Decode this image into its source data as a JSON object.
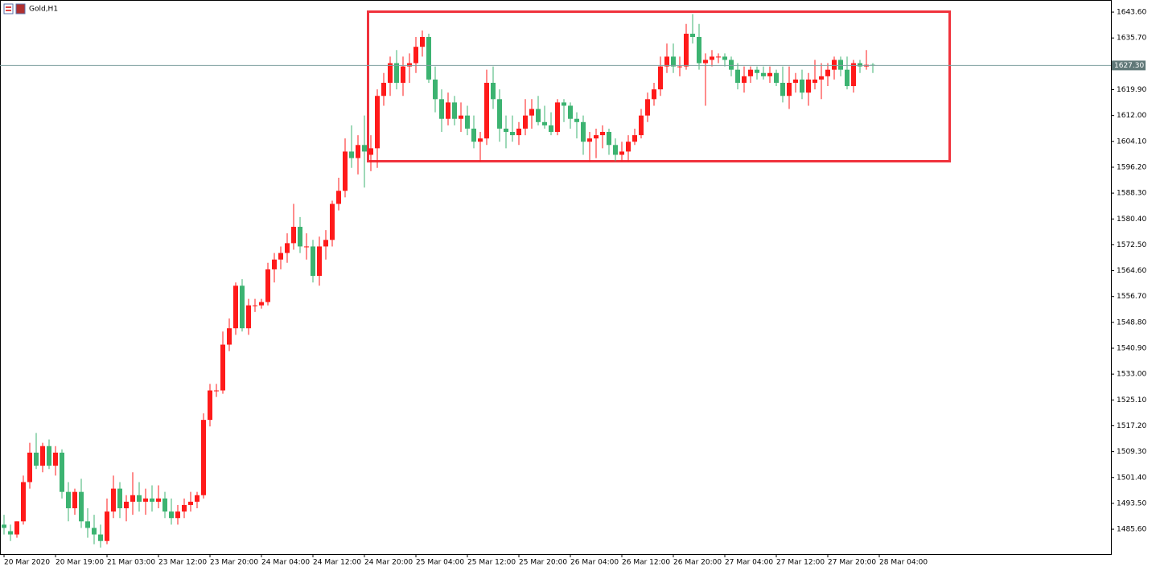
{
  "chart_data": {
    "type": "candlestick",
    "title": "Gold,H1",
    "up_color": "#ff1a1a",
    "down_color": "#3cb371",
    "current_price": {
      "value": 1627.3,
      "label": "1627.30"
    },
    "ylim": [
      1478.0,
      1647.3
    ],
    "yticks": [
      {
        "value": 1643.6,
        "label": "1643.60"
      },
      {
        "value": 1635.7,
        "label": "1635.70"
      },
      {
        "value": 1619.9,
        "label": "1619.90"
      },
      {
        "value": 1612.0,
        "label": "1612.00"
      },
      {
        "value": 1604.1,
        "label": "1604.10"
      },
      {
        "value": 1596.2,
        "label": "1596.20"
      },
      {
        "value": 1588.3,
        "label": "1588.30"
      },
      {
        "value": 1580.4,
        "label": "1580.40"
      },
      {
        "value": 1572.5,
        "label": "1572.50"
      },
      {
        "value": 1564.6,
        "label": "1564.60"
      },
      {
        "value": 1556.7,
        "label": "1556.70"
      },
      {
        "value": 1548.8,
        "label": "1548.80"
      },
      {
        "value": 1540.9,
        "label": "1540.90"
      },
      {
        "value": 1533.0,
        "label": "1533.00"
      },
      {
        "value": 1525.1,
        "label": "1525.10"
      },
      {
        "value": 1517.2,
        "label": "1517.20"
      },
      {
        "value": 1509.3,
        "label": "1509.30"
      },
      {
        "value": 1501.4,
        "label": "1501.40"
      },
      {
        "value": 1493.5,
        "label": "1493.50"
      },
      {
        "value": 1485.6,
        "label": "1485.60"
      }
    ],
    "xticks": [
      {
        "value": 0,
        "label": "20 Mar 2020"
      },
      {
        "value": 8,
        "label": "20 Mar 19:00"
      },
      {
        "value": 16,
        "label": "21 Mar 03:00"
      },
      {
        "value": 24,
        "label": "23 Mar 12:00"
      },
      {
        "value": 32,
        "label": "23 Mar 20:00"
      },
      {
        "value": 40,
        "label": "24 Mar 04:00"
      },
      {
        "value": 48,
        "label": "24 Mar 12:00"
      },
      {
        "value": 56,
        "label": "24 Mar 20:00"
      },
      {
        "value": 64,
        "label": "25 Mar 04:00"
      },
      {
        "value": 72,
        "label": "25 Mar 12:00"
      },
      {
        "value": 80,
        "label": "25 Mar 20:00"
      },
      {
        "value": 88,
        "label": "26 Mar 04:00"
      },
      {
        "value": 96,
        "label": "26 Mar 12:00"
      },
      {
        "value": 104,
        "label": "26 Mar 20:00"
      },
      {
        "value": 112,
        "label": "27 Mar 04:00"
      },
      {
        "value": 120,
        "label": "27 Mar 12:00"
      },
      {
        "value": 128,
        "label": "27 Mar 20:00"
      },
      {
        "value": 136,
        "label": "28 Mar 04:00"
      }
    ],
    "candles": [
      [
        1487,
        1490,
        1484,
        1486
      ],
      [
        1485,
        1487,
        1482,
        1484
      ],
      [
        1484,
        1488,
        1483,
        1488
      ],
      [
        1488,
        1502,
        1487,
        1500
      ],
      [
        1500,
        1512,
        1498,
        1509
      ],
      [
        1509,
        1515,
        1504,
        1505
      ],
      [
        1505,
        1512,
        1503,
        1511
      ],
      [
        1511,
        1513,
        1504,
        1505
      ],
      [
        1505,
        1511,
        1502,
        1509
      ],
      [
        1509,
        1510,
        1495,
        1497
      ],
      [
        1497,
        1500,
        1488,
        1492
      ],
      [
        1492,
        1498,
        1490,
        1497
      ],
      [
        1497,
        1501,
        1486,
        1488
      ],
      [
        1488,
        1492,
        1483,
        1486
      ],
      [
        1486,
        1490,
        1481,
        1484
      ],
      [
        1484,
        1487,
        1480,
        1482
      ],
      [
        1482,
        1495,
        1481,
        1491
      ],
      [
        1491,
        1502,
        1489,
        1498
      ],
      [
        1498,
        1500,
        1489,
        1492
      ],
      [
        1492,
        1496,
        1488,
        1494
      ],
      [
        1494,
        1503,
        1490,
        1496
      ],
      [
        1496,
        1500,
        1491,
        1494
      ],
      [
        1494,
        1498,
        1490,
        1495
      ],
      [
        1495,
        1499,
        1491,
        1494
      ],
      [
        1494,
        1499,
        1492,
        1495
      ],
      [
        1495,
        1497,
        1489,
        1491
      ],
      [
        1491,
        1495,
        1487,
        1489
      ],
      [
        1489,
        1493,
        1487,
        1491
      ],
      [
        1491,
        1495,
        1489,
        1493
      ],
      [
        1493,
        1497,
        1491,
        1494
      ],
      [
        1494,
        1497,
        1492,
        1496
      ],
      [
        1496,
        1521,
        1495,
        1519
      ],
      [
        1519,
        1530,
        1517,
        1528
      ],
      [
        1528,
        1530,
        1526,
        1528
      ],
      [
        1528,
        1546,
        1527,
        1542
      ],
      [
        1542,
        1550,
        1540,
        1547
      ],
      [
        1547,
        1561,
        1545,
        1560
      ],
      [
        1560,
        1562,
        1546,
        1547
      ],
      [
        1547,
        1556,
        1545,
        1554
      ],
      [
        1554,
        1556,
        1552,
        1554
      ],
      [
        1554,
        1556,
        1553,
        1555
      ],
      [
        1555,
        1567,
        1554,
        1565
      ],
      [
        1565,
        1570,
        1561,
        1568
      ],
      [
        1568,
        1572,
        1565,
        1570
      ],
      [
        1570,
        1576,
        1567,
        1573
      ],
      [
        1573,
        1585,
        1571,
        1578
      ],
      [
        1578,
        1581,
        1570,
        1572
      ],
      [
        1572,
        1576,
        1568,
        1572
      ],
      [
        1572,
        1574,
        1561,
        1563
      ],
      [
        1563,
        1575,
        1560,
        1572
      ],
      [
        1572,
        1577,
        1568,
        1574
      ],
      [
        1574,
        1586,
        1572,
        1585
      ],
      [
        1585,
        1593,
        1583,
        1589
      ],
      [
        1589,
        1605,
        1587,
        1601
      ],
      [
        1601,
        1609,
        1596,
        1599
      ],
      [
        1599,
        1606,
        1594,
        1603
      ],
      [
        1603,
        1612,
        1590,
        1601
      ],
      [
        1600,
        1606,
        1595,
        1602
      ],
      [
        1602,
        1620,
        1596,
        1618
      ],
      [
        1618,
        1625,
        1615,
        1622
      ],
      [
        1622,
        1630,
        1618,
        1628
      ],
      [
        1628,
        1632,
        1620,
        1622
      ],
      [
        1622,
        1630,
        1618,
        1627
      ],
      [
        1627,
        1631,
        1622,
        1628
      ],
      [
        1628,
        1636,
        1625,
        1633
      ],
      [
        1633,
        1638,
        1630,
        1636
      ],
      [
        1636,
        1637,
        1622,
        1623
      ],
      [
        1623,
        1627,
        1613,
        1617
      ],
      [
        1617,
        1620,
        1607,
        1611
      ],
      [
        1611,
        1619,
        1609,
        1616
      ],
      [
        1616,
        1618,
        1609,
        1611
      ],
      [
        1611,
        1616,
        1607,
        1612
      ],
      [
        1612,
        1615,
        1606,
        1608
      ],
      [
        1608,
        1612,
        1602,
        1604
      ],
      [
        1604,
        1607,
        1598,
        1605
      ],
      [
        1605,
        1626,
        1603,
        1622
      ],
      [
        1622,
        1627,
        1614,
        1617
      ],
      [
        1617,
        1620,
        1604,
        1608
      ],
      [
        1608,
        1612,
        1602,
        1607
      ],
      [
        1607,
        1612,
        1604,
        1606
      ],
      [
        1606,
        1610,
        1603,
        1608
      ],
      [
        1608,
        1617,
        1606,
        1612
      ],
      [
        1612,
        1617,
        1608,
        1614
      ],
      [
        1614,
        1618,
        1609,
        1610
      ],
      [
        1610,
        1615,
        1608,
        1609
      ],
      [
        1609,
        1613,
        1606,
        1607
      ],
      [
        1607,
        1617,
        1606,
        1616
      ],
      [
        1616,
        1617,
        1610,
        1615
      ],
      [
        1615,
        1616,
        1608,
        1611
      ],
      [
        1611,
        1613,
        1605,
        1610
      ],
      [
        1610,
        1612,
        1600,
        1604
      ],
      [
        1604,
        1607,
        1598,
        1605
      ],
      [
        1605,
        1608,
        1599,
        1606
      ],
      [
        1606,
        1609,
        1602,
        1607
      ],
      [
        1607,
        1608,
        1600,
        1603
      ],
      [
        1603,
        1605,
        1598,
        1600
      ],
      [
        1600,
        1604,
        1598,
        1601
      ],
      [
        1601,
        1606,
        1598,
        1604
      ],
      [
        1604,
        1608,
        1603,
        1606
      ],
      [
        1606,
        1614,
        1605,
        1612
      ],
      [
        1612,
        1619,
        1610,
        1617
      ],
      [
        1617,
        1622,
        1615,
        1620
      ],
      [
        1620,
        1630,
        1618,
        1627
      ],
      [
        1627,
        1634,
        1625,
        1630
      ],
      [
        1630,
        1634,
        1625,
        1627
      ],
      [
        1627,
        1630,
        1624,
        1627
      ],
      [
        1627,
        1640,
        1626,
        1637
      ],
      [
        1637,
        1643,
        1634,
        1636
      ],
      [
        1636,
        1640,
        1626,
        1628
      ],
      [
        1628,
        1631,
        1615,
        1629
      ],
      [
        1629,
        1632,
        1627,
        1630
      ],
      [
        1630,
        1631,
        1628,
        1630
      ],
      [
        1630,
        1631,
        1627,
        1629
      ],
      [
        1629,
        1630,
        1624,
        1626
      ],
      [
        1626,
        1628,
        1620,
        1622
      ],
      [
        1622,
        1627,
        1619,
        1624
      ],
      [
        1624,
        1627,
        1622,
        1626
      ],
      [
        1626,
        1627,
        1623,
        1625
      ],
      [
        1625,
        1627,
        1623,
        1624
      ],
      [
        1624,
        1627,
        1622,
        1625
      ],
      [
        1625,
        1626,
        1621,
        1622
      ],
      [
        1622,
        1627,
        1616,
        1618
      ],
      [
        1618,
        1627,
        1614,
        1622
      ],
      [
        1622,
        1625,
        1619,
        1623
      ],
      [
        1623,
        1626,
        1617,
        1619
      ],
      [
        1619,
        1625,
        1615,
        1623
      ],
      [
        1622,
        1629,
        1620,
        1623
      ],
      [
        1623,
        1628,
        1617,
        1624
      ],
      [
        1624,
        1628,
        1621,
        1626
      ],
      [
        1626,
        1630,
        1623,
        1629
      ],
      [
        1629,
        1630,
        1624,
        1626
      ],
      [
        1626,
        1630,
        1620,
        1621
      ],
      [
        1621,
        1629,
        1619,
        1628
      ],
      [
        1628,
        1629,
        1625,
        1627
      ],
      [
        1627,
        1632,
        1626,
        1627.5
      ],
      [
        1627.5,
        1628,
        1625,
        1627.3
      ]
    ]
  }
}
